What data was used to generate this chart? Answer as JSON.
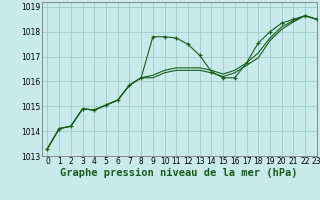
{
  "title": "Graphe pression niveau de la mer (hPa)",
  "bg_color": "#c8eaea",
  "grid_color": "#a0cccc",
  "line_color": "#1a5c1a",
  "xlim": [
    -0.5,
    23
  ],
  "ylim": [
    1013,
    1019.2
  ],
  "xticks": [
    0,
    1,
    2,
    3,
    4,
    5,
    6,
    7,
    8,
    9,
    10,
    11,
    12,
    13,
    14,
    15,
    16,
    17,
    18,
    19,
    20,
    21,
    22,
    23
  ],
  "yticks": [
    1013,
    1014,
    1015,
    1016,
    1017,
    1018,
    1019
  ],
  "series": [
    {
      "x": [
        0,
        1,
        2,
        3,
        4,
        5,
        6,
        7,
        8,
        9,
        10,
        11,
        12,
        13,
        14,
        15,
        16,
        17,
        18,
        19,
        20,
        21,
        22,
        23
      ],
      "y": [
        1013.3,
        1014.1,
        1014.2,
        1014.9,
        1014.85,
        1015.05,
        1015.25,
        1015.85,
        1016.15,
        1017.8,
        1017.8,
        1017.75,
        1017.5,
        1017.05,
        1016.4,
        1016.15,
        1016.15,
        1016.75,
        1017.55,
        1018.0,
        1018.35,
        1018.5,
        1018.65,
        1018.5
      ],
      "marker": "+"
    },
    {
      "x": [
        0,
        1,
        2,
        3,
        4,
        5,
        6,
        7,
        8,
        9,
        10,
        11,
        12,
        13,
        14,
        15,
        16,
        17,
        18,
        19,
        20,
        21,
        22,
        23
      ],
      "y": [
        1013.3,
        1014.1,
        1014.2,
        1014.9,
        1014.85,
        1015.05,
        1015.25,
        1015.85,
        1016.15,
        1016.25,
        1016.45,
        1016.55,
        1016.55,
        1016.55,
        1016.45,
        1016.3,
        1016.45,
        1016.75,
        1017.15,
        1017.75,
        1018.2,
        1018.45,
        1018.65,
        1018.5
      ],
      "marker": null
    },
    {
      "x": [
        0,
        1,
        2,
        3,
        4,
        5,
        6,
        7,
        8,
        9,
        10,
        11,
        12,
        13,
        14,
        15,
        16,
        17,
        18,
        19,
        20,
        21,
        22,
        23
      ],
      "y": [
        1013.3,
        1014.1,
        1014.2,
        1014.9,
        1014.85,
        1015.05,
        1015.25,
        1015.85,
        1016.15,
        1016.15,
        1016.35,
        1016.45,
        1016.45,
        1016.45,
        1016.35,
        1016.2,
        1016.35,
        1016.65,
        1016.95,
        1017.65,
        1018.1,
        1018.4,
        1018.65,
        1018.5
      ],
      "marker": null
    }
  ],
  "tick_fontsize": 5.5,
  "xlabel_fontsize": 7.5
}
